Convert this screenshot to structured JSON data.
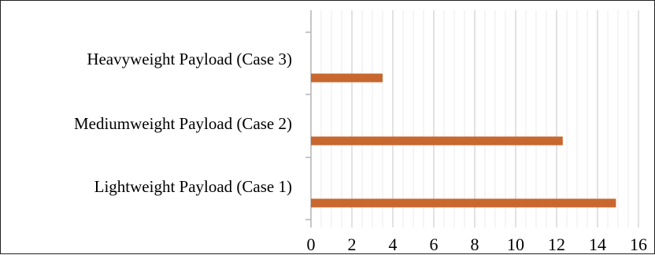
{
  "chart_data": {
    "type": "bar",
    "orientation": "horizontal",
    "categories": [
      "Heavyweight Payload (Case 3)",
      "Mediumweight Payload (Case 2)",
      "Lightweight Payload (Case 1)"
    ],
    "values": [
      3.5,
      12.3,
      14.9
    ],
    "xlim": [
      0,
      16
    ],
    "x_ticks": [
      0,
      2,
      4,
      6,
      8,
      10,
      12,
      14,
      16
    ],
    "x_minor_step": 0.5,
    "title": "",
    "xlabel": "",
    "ylabel": "",
    "grid": true,
    "legend": "none",
    "colors": {
      "bar": "#C8672E",
      "major_grid": "#cfcfcf",
      "minor_grid": "#ebebeb",
      "axis": "#b5b5b5",
      "text": "#000000"
    }
  }
}
